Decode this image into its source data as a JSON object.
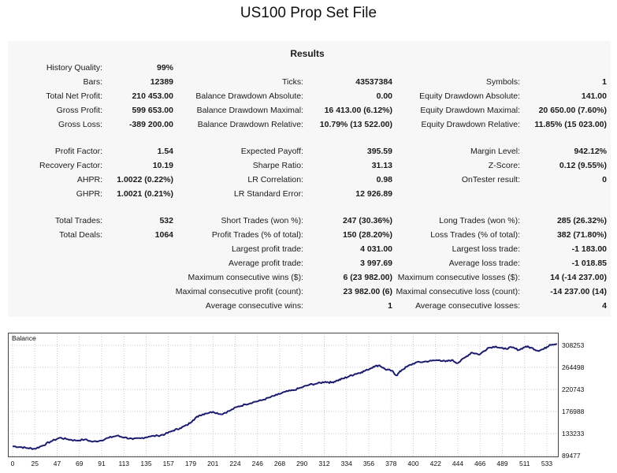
{
  "page_title": "US100 Prop Set File",
  "report": {
    "title": "Results",
    "rows": [
      [
        [
          "History Quality:",
          "99%"
        ],
        null,
        null
      ],
      [
        [
          "Bars:",
          "12389"
        ],
        [
          "Ticks:",
          "43537384"
        ],
        [
          "Symbols:",
          "1"
        ]
      ],
      [
        [
          "Total Net Profit:",
          "210 453.00"
        ],
        [
          "Balance Drawdown Absolute:",
          "0.00"
        ],
        [
          "Equity Drawdown Absolute:",
          "141.00"
        ]
      ],
      [
        [
          "Gross Profit:",
          "599 653.00"
        ],
        [
          "Balance Drawdown Maximal:",
          "16 413.00 (6.12%)"
        ],
        [
          "Equity Drawdown Maximal:",
          "20 650.00 (7.60%)"
        ]
      ],
      [
        [
          "Gross Loss:",
          "-389 200.00"
        ],
        [
          "Balance Drawdown Relative:",
          "10.79% (13 522.00)"
        ],
        [
          "Equity Drawdown Relative:",
          "11.85% (15 023.00)"
        ]
      ],
      [
        [
          "Profit Factor:",
          "1.54"
        ],
        [
          "Expected Payoff:",
          "395.59"
        ],
        [
          "Margin Level:",
          "942.12%"
        ]
      ],
      [
        [
          "Recovery Factor:",
          "10.19"
        ],
        [
          "Sharpe Ratio:",
          "31.13"
        ],
        [
          "Z-Score:",
          "0.12 (9.55%)"
        ]
      ],
      [
        [
          "AHPR:",
          "1.0022 (0.22%)"
        ],
        [
          "LR Correlation:",
          "0.98"
        ],
        [
          "OnTester result:",
          "0"
        ]
      ],
      [
        [
          "GHPR:",
          "1.0021 (0.21%)"
        ],
        [
          "LR Standard Error:",
          "12 926.89"
        ],
        null
      ],
      [
        [
          "Total Trades:",
          "532"
        ],
        [
          "Short Trades (won %):",
          "247 (30.36%)"
        ],
        [
          "Long Trades (won %):",
          "285 (26.32%)"
        ]
      ],
      [
        [
          "Total Deals:",
          "1064"
        ],
        [
          "Profit Trades (% of total):",
          "150 (28.20%)"
        ],
        [
          "Loss Trades (% of total):",
          "382 (71.80%)"
        ]
      ],
      [
        null,
        [
          "Largest profit trade:",
          "4 031.00"
        ],
        [
          "Largest loss trade:",
          "-1 183.00"
        ]
      ],
      [
        null,
        [
          "Average profit trade:",
          "3 997.69"
        ],
        [
          "Average loss trade:",
          "-1 018.85"
        ]
      ],
      [
        null,
        [
          "Maximum consecutive wins ($):",
          "6 (23 982.00)"
        ],
        [
          "Maximum consecutive losses ($):",
          "14 (-14 237.00)"
        ]
      ],
      [
        null,
        [
          "Maximal consecutive profit (count):",
          "23 982.00 (6)"
        ],
        [
          "Maximal consecutive loss (count):",
          "-14 237.00 (14)"
        ]
      ],
      [
        null,
        [
          "Average consecutive wins:",
          "1"
        ],
        [
          "Average consecutive losses:",
          "4"
        ]
      ]
    ]
  },
  "chart_data": {
    "type": "line",
    "title": "Balance",
    "xlabel": "",
    "ylabel": "",
    "x_ticks": [
      "0",
      "25",
      "47",
      "69",
      "91",
      "113",
      "135",
      "157",
      "179",
      "201",
      "224",
      "246",
      "268",
      "290",
      "312",
      "334",
      "356",
      "378",
      "400",
      "422",
      "444",
      "466",
      "489",
      "511",
      "533"
    ],
    "y_ticks": [
      "308253",
      "264498",
      "220743",
      "176988",
      "133233",
      "89477"
    ],
    "ylim": [
      89477,
      330000
    ],
    "xlim": [
      0,
      545
    ],
    "grid": true,
    "line_color": "#1c1c6e",
    "series": [
      {
        "name": "Balance",
        "points": [
          [
            0,
            108000
          ],
          [
            8,
            106500
          ],
          [
            15,
            104500
          ],
          [
            22,
            103000
          ],
          [
            30,
            109500
          ],
          [
            38,
            117500
          ],
          [
            47,
            125000
          ],
          [
            55,
            122000
          ],
          [
            63,
            119500
          ],
          [
            72,
            121500
          ],
          [
            80,
            117000
          ],
          [
            88,
            119500
          ],
          [
            96,
            125000
          ],
          [
            104,
            129000
          ],
          [
            112,
            125500
          ],
          [
            120,
            122000
          ],
          [
            128,
            124000
          ],
          [
            136,
            127500
          ],
          [
            145,
            129000
          ],
          [
            152,
            132000
          ],
          [
            160,
            139000
          ],
          [
            167,
            144000
          ],
          [
            174,
            150000
          ],
          [
            180,
            160000
          ],
          [
            186,
            169000
          ],
          [
            192,
            173000
          ],
          [
            200,
            176500
          ],
          [
            208,
            171500
          ],
          [
            216,
            178000
          ],
          [
            224,
            186000
          ],
          [
            232,
            191000
          ],
          [
            240,
            195500
          ],
          [
            248,
            199000
          ],
          [
            256,
            204500
          ],
          [
            264,
            210000
          ],
          [
            272,
            216000
          ],
          [
            280,
            219000
          ],
          [
            288,
            224500
          ],
          [
            296,
            230000
          ],
          [
            304,
            232500
          ],
          [
            312,
            236000
          ],
          [
            318,
            234500
          ],
          [
            324,
            238500
          ],
          [
            330,
            242500
          ],
          [
            336,
            247000
          ],
          [
            342,
            251500
          ],
          [
            348,
            255000
          ],
          [
            354,
            259500
          ],
          [
            360,
            266000
          ],
          [
            366,
            268500
          ],
          [
            372,
            260500
          ],
          [
            378,
            258000
          ],
          [
            383,
            248500
          ],
          [
            388,
            259000
          ],
          [
            394,
            266500
          ],
          [
            402,
            274000
          ],
          [
            410,
            275500
          ],
          [
            418,
            277500
          ],
          [
            426,
            279000
          ],
          [
            432,
            276000
          ],
          [
            438,
            279000
          ],
          [
            444,
            273000
          ],
          [
            452,
            285000
          ],
          [
            458,
            294000
          ],
          [
            466,
            290000
          ],
          [
            474,
            303000
          ],
          [
            482,
            306000
          ],
          [
            490,
            301000
          ],
          [
            498,
            304000
          ],
          [
            505,
            299000
          ],
          [
            512,
            306000
          ],
          [
            518,
            303000
          ],
          [
            524,
            297500
          ],
          [
            530,
            301000
          ],
          [
            536,
            309500
          ],
          [
            543,
            311500
          ]
        ]
      }
    ]
  }
}
